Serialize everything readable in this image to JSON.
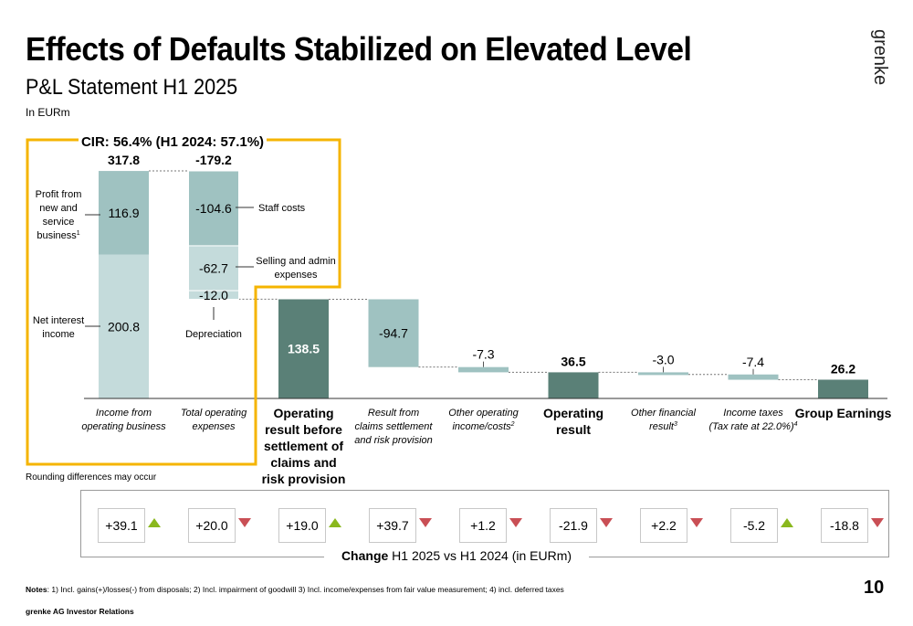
{
  "header": {
    "title": "Effects of Defaults Stabilized on Elevated Level",
    "subtitle": "P&L Statement H1 2025",
    "unit": "In EURm",
    "logo_text": "grenke"
  },
  "colors": {
    "dark": "#5a8077",
    "mid": "#9fc2c1",
    "light": "#c4dbdb",
    "frame": "#f5b400",
    "up": "#8ab81e",
    "down": "#c94f55"
  },
  "chart_data": {
    "type": "bar",
    "subtype": "waterfall",
    "cir_label": "CIR: 56.4% (H1 2024: 57.1%)",
    "categories": [
      {
        "label": "Income from operating business",
        "value": 317.8,
        "value_label": "317.8",
        "kind": "total",
        "style": "italic"
      },
      {
        "label": "Total operating expenses",
        "value": -179.2,
        "value_label": "-179.2",
        "kind": "delta",
        "style": "italic"
      },
      {
        "label": "Operating result before settlement of claims and risk provision",
        "value": 138.5,
        "value_label": "138.5",
        "kind": "total",
        "style": "bold"
      },
      {
        "label": "Result from claims settlement and risk provision",
        "value": -94.7,
        "value_label": "-94.7",
        "kind": "delta",
        "style": "italic"
      },
      {
        "label": "Other operating income/costs",
        "sup": "2",
        "value": -7.3,
        "value_label": "-7.3",
        "kind": "delta",
        "style": "italic"
      },
      {
        "label": "Operating result",
        "value": 36.5,
        "value_label": "36.5",
        "kind": "total",
        "style": "bold"
      },
      {
        "label": "Other financial result",
        "sup": "3",
        "value": -3.0,
        "value_label": "-3.0",
        "kind": "delta",
        "style": "italic"
      },
      {
        "label": "Income taxes (Tax rate at 22.0%)",
        "sup": "4",
        "value": -7.4,
        "value_label": "-7.4",
        "kind": "delta",
        "style": "italic"
      },
      {
        "label": "Group Earnings",
        "value": 26.2,
        "value_label": "26.2",
        "kind": "total",
        "style": "bold"
      }
    ],
    "segments": {
      "income": [
        {
          "name": "Net interest income",
          "value": 200.8,
          "value_label": "200.8"
        },
        {
          "name": "Profit from new and service business",
          "sup": "1",
          "value": 116.9,
          "value_label": "116.9"
        }
      ],
      "expenses": [
        {
          "name": "Staff costs",
          "value": -104.6,
          "value_label": "-104.6"
        },
        {
          "name": "Selling and admin expenses",
          "value": -62.7,
          "value_label": "-62.7"
        },
        {
          "name": "Depreciation",
          "value": -12.0,
          "value_label": "-12.0"
        }
      ]
    },
    "ylim": [
      0,
      317.8
    ]
  },
  "changes": {
    "items": [
      {
        "value": "+39.1",
        "dir": "up"
      },
      {
        "value": "+20.0",
        "dir": "down"
      },
      {
        "value": "+19.0",
        "dir": "up"
      },
      {
        "value": "+39.7",
        "dir": "down"
      },
      {
        "value": "+1.2",
        "dir": "down"
      },
      {
        "value": "-21.9",
        "dir": "down"
      },
      {
        "value": "+2.2",
        "dir": "down"
      },
      {
        "value": "-5.2",
        "dir": "up"
      },
      {
        "value": "-18.8",
        "dir": "down"
      }
    ],
    "caption_bold": "Change",
    "caption_rest": " H1 2025 vs H1 2024 (in EURm)"
  },
  "rounding_note": "Rounding differences may occur",
  "notes": {
    "label": "Notes",
    "text": ": 1) Incl. gains(+)/losses(-) from disposals; 2) Incl. impairment of goodwill 3) Incl. income/expenses from fair value measurement; 4) incl. deferred taxes"
  },
  "footer": "grenke AG Investor Relations",
  "page_number": "10"
}
